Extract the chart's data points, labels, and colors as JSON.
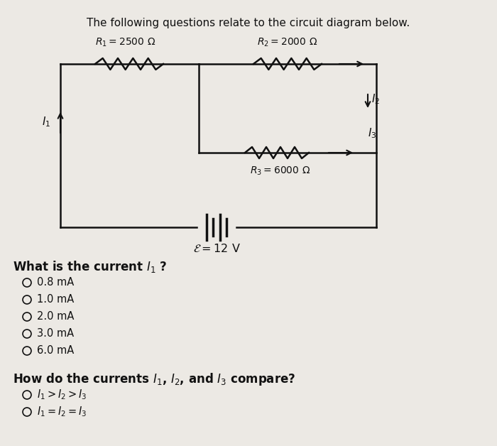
{
  "title": "The following questions relate to the circuit diagram below.",
  "background_color": "#ece9e4",
  "R1_label": "$R_1 = 2500\\ \\Omega$",
  "R2_label": "$R_2 = 2000\\ \\Omega$",
  "R3_label": "$R_3 = 6000\\ \\Omega$",
  "EMF_label": "$\\mathcal{E} = 12\\ \\mathrm{V}$",
  "I1_label": "$I_1$",
  "I2_label": "$I_2$",
  "I3_label": "$I_3$",
  "question1": "What is the current $I_1$ ?",
  "options1": [
    "0.8 mA",
    "1.0 mA",
    "2.0 mA",
    "3.0 mA",
    "6.0 mA"
  ],
  "question2": "How do the currents $I_1$, $I_2$, and $I_3$ compare?",
  "options2": [
    "$I_1 > I_2 > I_3$",
    "$I_1 = I_2 = I_3$"
  ],
  "text_color": "#111111",
  "line_color": "#111111"
}
